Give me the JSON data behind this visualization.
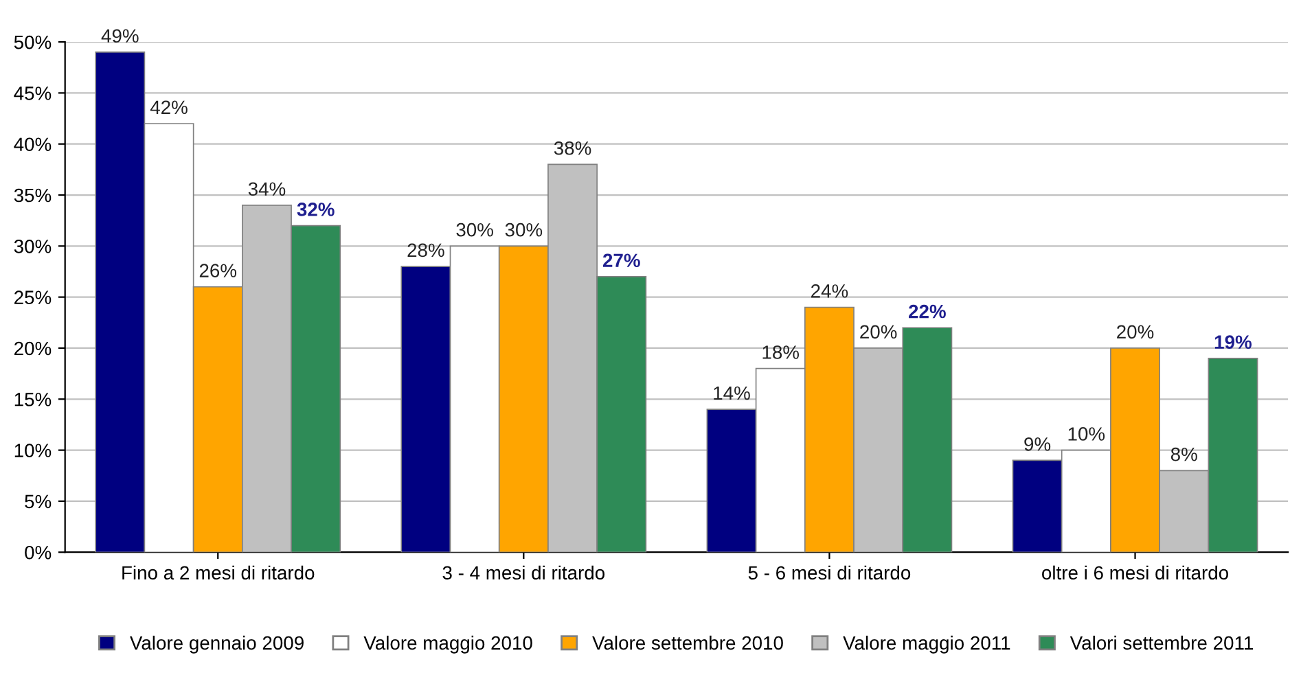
{
  "chart_data": {
    "type": "bar",
    "categories": [
      "Fino a 2 mesi di ritardo",
      "3 - 4 mesi di ritardo",
      "5 - 6 mesi di ritardo",
      "oltre i 6 mesi di ritardo"
    ],
    "series": [
      {
        "name": "Valore gennaio 2009",
        "color": "#000080",
        "values": [
          49,
          28,
          14,
          9
        ],
        "value_labels": [
          "49%",
          "28%",
          "14%",
          "9%"
        ]
      },
      {
        "name": "Valore maggio 2010",
        "color": "#ffffff",
        "values": [
          42,
          30,
          18,
          10
        ],
        "value_labels": [
          "42%",
          "30%",
          "18%",
          "10%"
        ]
      },
      {
        "name": "Valore settembre 2010",
        "color": "#ffa500",
        "values": [
          26,
          30,
          24,
          20
        ],
        "value_labels": [
          "26%",
          "30%",
          "24%",
          "20%"
        ]
      },
      {
        "name": "Valore maggio 2011",
        "color": "#c0c0c0",
        "values": [
          34,
          38,
          20,
          8
        ],
        "value_labels": [
          "34%",
          "38%",
          "20%",
          "8%"
        ]
      },
      {
        "name": "Valori settembre 2011",
        "color": "#2e8b57",
        "values": [
          32,
          27,
          22,
          19
        ],
        "value_labels": [
          "32%",
          "27%",
          "22%",
          "19%"
        ]
      }
    ],
    "ylim": [
      0,
      50
    ],
    "yticks": [
      {
        "value": 0,
        "label": "0%"
      },
      {
        "value": 5,
        "label": "5%"
      },
      {
        "value": 10,
        "label": "10%"
      },
      {
        "value": 15,
        "label": "15%"
      },
      {
        "value": 20,
        "label": "20%"
      },
      {
        "value": 25,
        "label": "25%"
      },
      {
        "value": 30,
        "label": "30%"
      },
      {
        "value": 35,
        "label": "35%"
      },
      {
        "value": 40,
        "label": "40%"
      },
      {
        "value": 45,
        "label": "45%"
      },
      {
        "value": 50,
        "label": "50%"
      }
    ],
    "grid": "y",
    "legend": "bottom"
  }
}
